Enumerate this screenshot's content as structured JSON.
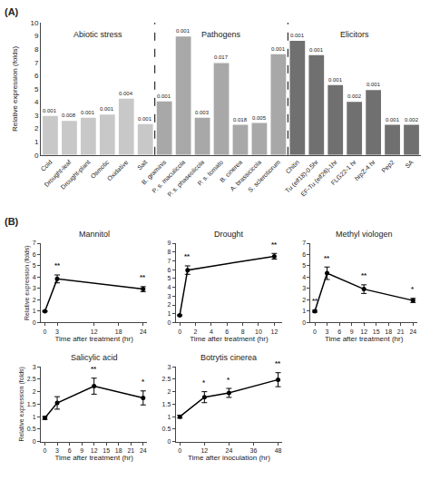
{
  "chart_data": [
    {
      "type": "bar",
      "categories": [
        "Cold",
        "Drought-leaf",
        "Drought-plant",
        "Osmotic",
        "Oxidative",
        "Salt",
        "B. graminis",
        "P. s. maculicola",
        "P. s. phaseolicola",
        "P. s. tomato",
        "B. cinerea",
        "A. brassicicola",
        "S. sclerotiorum",
        "Chitin",
        "Tu (elf18)-0.5hr",
        "EF-Tu (elf26)-1hr",
        "FLG22-1 hr",
        "hrpZ-4 hr",
        "Pep2",
        "SA"
      ],
      "values": [
        2.95,
        2.58,
        2.82,
        3.05,
        4.25,
        2.33,
        4.05,
        8.95,
        2.82,
        6.95,
        2.28,
        2.42,
        7.62,
        8.62,
        7.55,
        5.28,
        4.02,
        4.9,
        2.28,
        2.28
      ],
      "pvalues": [
        "0.001",
        "0.008",
        "0.001",
        "0.001",
        "0.004",
        "0.001",
        "0.001",
        "0.001",
        "0.003",
        "0.017",
        "0.018",
        "0.005",
        "0.001",
        "0.001",
        "0.001",
        "0.001",
        "0.002",
        "0.001",
        "0.001",
        "0.002"
      ],
      "colors": [
        "#c8c8c8",
        "#c8c8c8",
        "#c8c8c8",
        "#c8c8c8",
        "#c8c8c8",
        "#c8c8c8",
        "#a8a8a8",
        "#a8a8a8",
        "#a8a8a8",
        "#a8a8a8",
        "#a8a8a8",
        "#a8a8a8",
        "#a8a8a8",
        "#707070",
        "#707070",
        "#707070",
        "#707070",
        "#707070",
        "#707070",
        "#707070"
      ],
      "ylabel": "Relative expression (folds)",
      "ylim": [
        0,
        10
      ],
      "yticks": [
        0,
        1,
        2,
        3,
        4,
        5,
        6,
        7,
        8,
        9,
        10
      ],
      "grid": false,
      "annotations": [
        {
          "text": "(A)"
        },
        {
          "text": "Abiotic stress",
          "x": 2.5,
          "y": 9.6
        },
        {
          "text": "Pathogens",
          "x": 9.0,
          "y": 9.6
        },
        {
          "text": "Elicitors",
          "x": 16.0,
          "y": 9.6
        }
      ]
    },
    {
      "type": "line",
      "title": "Mannitol",
      "x": [
        0,
        3,
        24
      ],
      "values": [
        1.0,
        3.85,
        2.95
      ],
      "yerr": [
        0.05,
        0.35,
        0.22
      ],
      "sig": [
        null,
        "**",
        "**"
      ],
      "xlabel": "Time after treatment (hr)",
      "ylabel": "Relative expression (folds)",
      "xlim": [
        -1,
        25
      ],
      "xticks": [
        0,
        3,
        12,
        18,
        24
      ],
      "ylim": [
        0,
        7
      ],
      "yticks": [
        0,
        1,
        2,
        3,
        4,
        5,
        6,
        7
      ],
      "color": "black",
      "marker": "circle",
      "line_style": "solid",
      "grid": false,
      "annotations": [
        {
          "text": "(B)"
        }
      ]
    },
    {
      "type": "line",
      "title": "Drought",
      "x": [
        0,
        1,
        12
      ],
      "values": [
        0.82,
        5.95,
        7.52
      ],
      "yerr": [
        0.05,
        0.48,
        0.32
      ],
      "sig": [
        null,
        "**",
        "**"
      ],
      "xlabel": "Time after treatment (hr)",
      "xlim": [
        -0.5,
        13
      ],
      "xticks": [
        0,
        2,
        4,
        6,
        8,
        10,
        12
      ],
      "ylim": [
        0,
        9
      ],
      "yticks": [
        0,
        1,
        2,
        3,
        4,
        5,
        6,
        7,
        8,
        9
      ],
      "color": "black",
      "marker": "circle",
      "line_style": "solid",
      "grid": false
    },
    {
      "type": "line",
      "title": "Methyl viologen",
      "x": [
        0,
        3,
        12,
        24
      ],
      "values": [
        1.0,
        4.35,
        2.95,
        1.95
      ],
      "yerr": [
        0.08,
        0.55,
        0.38,
        0.18
      ],
      "sig": [
        "**",
        "**",
        "**",
        "*"
      ],
      "xlabel": "Time after treatment (hr)",
      "xlim": [
        -1,
        25
      ],
      "xticks": [
        0,
        3,
        6,
        9,
        12,
        15,
        18,
        21,
        24
      ],
      "ylim": [
        0,
        7
      ],
      "yticks": [
        0,
        1,
        2,
        3,
        4,
        5,
        6,
        7
      ],
      "color": "black",
      "marker": "circle",
      "line_style": "solid",
      "grid": false
    },
    {
      "type": "line",
      "title": "Salicylic acid",
      "x": [
        0,
        3,
        12,
        24
      ],
      "values": [
        0.95,
        1.55,
        2.22,
        1.75
      ],
      "yerr": [
        0.06,
        0.25,
        0.32,
        0.28
      ],
      "sig": [
        null,
        null,
        "**",
        "*"
      ],
      "xlabel": "Time after treatment (hr)",
      "ylabel": "Relative expression (folds)",
      "xlim": [
        -1,
        25
      ],
      "xticks": [
        0,
        3,
        6,
        9,
        12,
        15,
        18,
        21,
        24
      ],
      "ylim": [
        0,
        3.0
      ],
      "yticks": [
        0,
        0.5,
        1,
        1.5,
        2,
        2.5,
        3
      ],
      "color": "black",
      "marker": "circle",
      "line_style": "solid",
      "grid": false
    },
    {
      "type": "line",
      "title": "Botrytis cinerea",
      "x": [
        0,
        12,
        24,
        48
      ],
      "values": [
        1.0,
        1.78,
        1.95,
        2.48
      ],
      "yerr": [
        0.06,
        0.22,
        0.18,
        0.28
      ],
      "sig": [
        null,
        "*",
        "*",
        "**"
      ],
      "xlabel": "Time after inoculation (hr)",
      "xlim": [
        -2,
        50
      ],
      "xticks": [
        0,
        12,
        24,
        36,
        48
      ],
      "ylim": [
        0,
        3.0
      ],
      "yticks": [
        0,
        0.5,
        1,
        1.5,
        2,
        2.5,
        3
      ],
      "color": "black",
      "marker": "circle",
      "line_style": "solid",
      "grid": false
    }
  ]
}
